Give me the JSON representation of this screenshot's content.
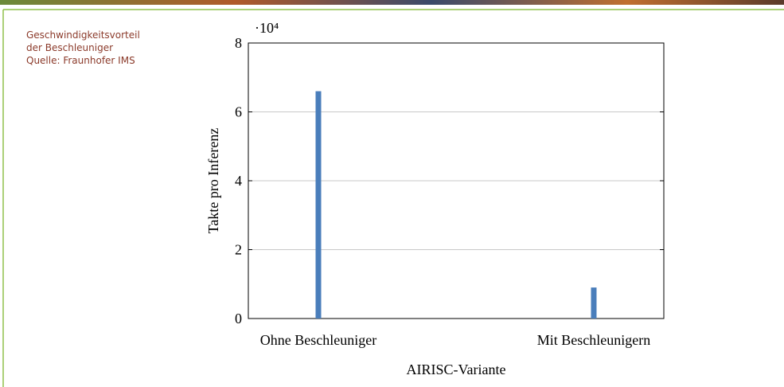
{
  "caption": {
    "lines": [
      "Geschwindigkeitsvorteil",
      "der Beschleuniger",
      "Quelle:  Fraunhofer IMS"
    ]
  },
  "chart_data": {
    "type": "bar",
    "ylabel": "Takte pro Inferenz",
    "xlabel": "AIRISC-Variante",
    "y_multiplier": "·10⁴",
    "categories": [
      "Ohne Beschleuniger",
      "Mit Beschleunigern"
    ],
    "values": [
      6.6,
      0.9
    ],
    "color": "#4a7ebb",
    "ylim": [
      0,
      8
    ],
    "yticks": [
      0,
      2,
      4,
      6,
      8
    ],
    "grid": true
  }
}
